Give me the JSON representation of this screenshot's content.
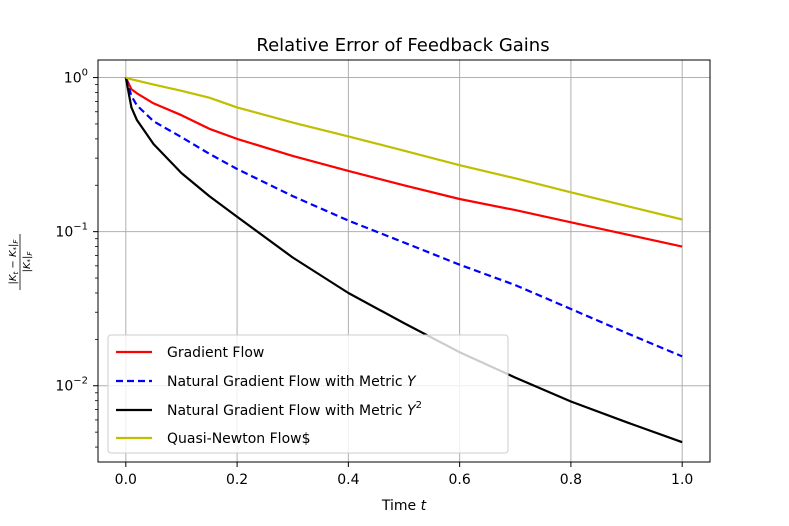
{
  "chart_data": {
    "type": "line",
    "title": "Relative Error of Feedback Gains",
    "xlabel_main": "Time ",
    "xlabel_var": "t",
    "ylabel": "|K_t − K_*|_F / |K_*|_F",
    "yscale": "log",
    "xlim": [
      -0.05,
      1.05
    ],
    "ylim": [
      0.0032,
      1.3
    ],
    "grid": true,
    "legend_position": "lower-left",
    "x_ticks": [
      {
        "value": 0.0,
        "label": "0.0"
      },
      {
        "value": 0.2,
        "label": "0.2"
      },
      {
        "value": 0.4,
        "label": "0.4"
      },
      {
        "value": 0.6,
        "label": "0.6"
      },
      {
        "value": 0.8,
        "label": "0.8"
      },
      {
        "value": 1.0,
        "label": "1.0"
      }
    ],
    "y_ticks": [
      {
        "value": 1,
        "base": "10",
        "exp": "0"
      },
      {
        "value": 0.1,
        "base": "10",
        "exp": "−1"
      },
      {
        "value": 0.01,
        "base": "10",
        "exp": "−2"
      }
    ],
    "x": [
      0.0,
      0.01,
      0.02,
      0.05,
      0.1,
      0.15,
      0.2,
      0.3,
      0.4,
      0.5,
      0.6,
      0.7,
      0.8,
      0.9,
      1.0
    ],
    "series": [
      {
        "name": "Gradient Flow",
        "color": "#ff0000",
        "dash": "solid",
        "values": [
          1.0,
          0.84,
          0.79,
          0.68,
          0.57,
          0.465,
          0.4,
          0.31,
          0.248,
          0.2,
          0.163,
          0.138,
          0.115,
          0.096,
          0.08
        ]
      },
      {
        "name": "Natural Gradient Flow with Metric Y",
        "color": "#0000ff",
        "dash": "dashed",
        "values": [
          1.0,
          0.76,
          0.66,
          0.52,
          0.41,
          0.32,
          0.255,
          0.17,
          0.118,
          0.085,
          0.061,
          0.045,
          0.0315,
          0.022,
          0.0155
        ]
      },
      {
        "name": "Natural Gradient Flow with Metric Y²",
        "color": "#000000",
        "dash": "solid",
        "values": [
          1.0,
          0.64,
          0.53,
          0.37,
          0.24,
          0.17,
          0.125,
          0.068,
          0.04,
          0.0255,
          0.0165,
          0.0113,
          0.0079,
          0.0058,
          0.0043
        ]
      },
      {
        "name": "Quasi-Newton Flow$",
        "color": "#bfbf00",
        "dash": "solid",
        "values": [
          1.0,
          0.975,
          0.955,
          0.9,
          0.82,
          0.74,
          0.64,
          0.51,
          0.415,
          0.335,
          0.27,
          0.222,
          0.18,
          0.147,
          0.12
        ]
      }
    ],
    "legend": [
      {
        "text": "Gradient Flow",
        "italic": "",
        "sup": ""
      },
      {
        "text": "Natural Gradient Flow with Metric ",
        "italic": "Y",
        "sup": ""
      },
      {
        "text": "Natural Gradient Flow with Metric ",
        "italic": "Y",
        "sup": "2"
      },
      {
        "text": "Quasi-Newton Flow$",
        "italic": "",
        "sup": ""
      }
    ]
  }
}
